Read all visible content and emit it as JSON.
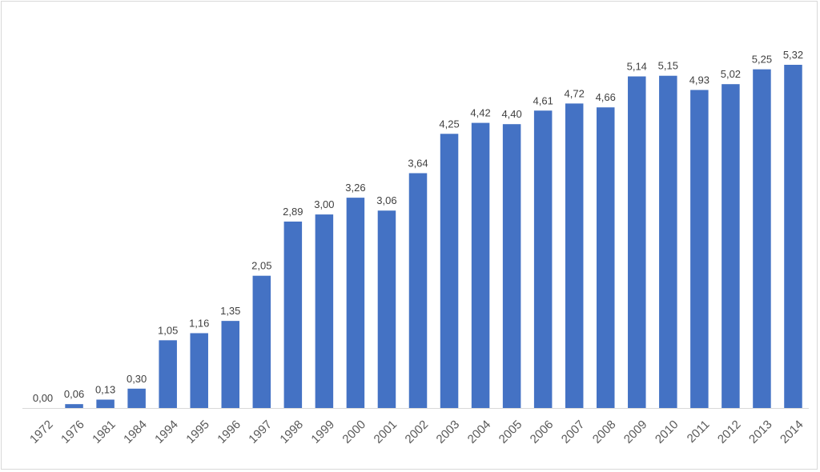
{
  "chart_data": {
    "type": "bar",
    "title": "",
    "xlabel": "",
    "ylabel": "",
    "categories": [
      "1972",
      "1976",
      "1981",
      "1984",
      "1994",
      "1995",
      "1996",
      "1997",
      "1998",
      "1999",
      "2000",
      "2001",
      "2002",
      "2003",
      "2004",
      "2005",
      "2006",
      "2007",
      "2008",
      "2009",
      "2010",
      "2011",
      "2012",
      "2013",
      "2014"
    ],
    "values": [
      0.0,
      0.06,
      0.13,
      0.3,
      1.05,
      1.16,
      1.35,
      2.05,
      2.89,
      3.0,
      3.26,
      3.06,
      3.64,
      4.25,
      4.42,
      4.4,
      4.61,
      4.72,
      4.66,
      5.14,
      5.15,
      4.93,
      5.02,
      5.25,
      5.32
    ],
    "data_labels": [
      "0,00",
      "0,06",
      "0,13",
      "0,30",
      "1,05",
      "1,16",
      "1,35",
      "2,05",
      "2,89",
      "3,00",
      "3,26",
      "3,06",
      "3,64",
      "4,25",
      "4,42",
      "4,40",
      "4,61",
      "4,72",
      "4,66",
      "5,14",
      "5,15",
      "4,93",
      "5,02",
      "5,25",
      "5,32"
    ],
    "ylim": [
      0,
      5.32
    ],
    "grid": false,
    "legend": "none",
    "bar_color": "#4472C4",
    "axis_color": "#d9d9d9"
  }
}
